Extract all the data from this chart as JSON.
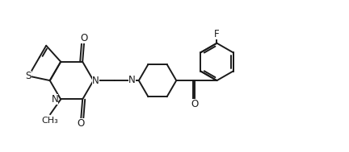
{
  "bg_color": "#ffffff",
  "line_color": "#1a1a1a",
  "line_width": 1.4,
  "font_size": 8.5,
  "figsize": [
    4.32,
    1.89
  ],
  "dpi": 100,
  "xlim": [
    0,
    11.5
  ],
  "ylim": [
    0.2,
    5.2
  ]
}
